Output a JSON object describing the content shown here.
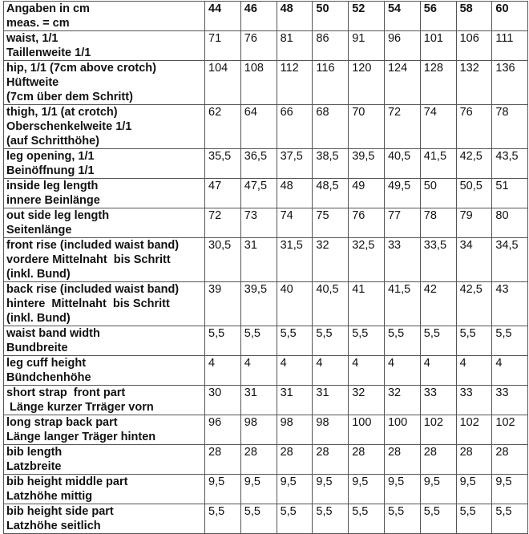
{
  "table": {
    "header_label": [
      "Angaben in cm",
      "meas. = cm"
    ],
    "sizes": [
      "44",
      "46",
      "48",
      "50",
      "52",
      "54",
      "56",
      "58",
      "60"
    ],
    "rows": [
      {
        "label": [
          "waist, 1/1",
          "Taillenweite 1/1"
        ],
        "values": [
          "71",
          "76",
          "81",
          "86",
          "91",
          "96",
          "101",
          "106",
          "111"
        ]
      },
      {
        "label": [
          "hip, 1/1 (7cm above crotch)",
          "Hüftweite",
          "(7cm über dem Schritt)"
        ],
        "values": [
          "104",
          "108",
          "112",
          "116",
          "120",
          "124",
          "128",
          "132",
          "136"
        ]
      },
      {
        "label": [
          "thigh, 1/1 (at crotch)",
          "Oberschenkelweite 1/1",
          "(auf Schritthöhe)"
        ],
        "values": [
          "62",
          "64",
          "66",
          "68",
          "70",
          "72",
          "74",
          "76",
          "78"
        ]
      },
      {
        "label": [
          "leg opening, 1/1",
          "Beinöffnung 1/1"
        ],
        "values": [
          "35,5",
          "36,5",
          "37,5",
          "38,5",
          "39,5",
          "40,5",
          "41,5",
          "42,5",
          "43,5"
        ]
      },
      {
        "label": [
          "inside leg length",
          "innere Beinlänge"
        ],
        "values": [
          "47",
          "47,5",
          "48",
          "48,5",
          "49",
          "49,5",
          "50",
          "50,5",
          "51"
        ]
      },
      {
        "label": [
          "out side leg length",
          "Seitenlänge"
        ],
        "values": [
          "72",
          "73",
          "74",
          "75",
          "76",
          "77",
          "78",
          "79",
          "80"
        ]
      },
      {
        "label": [
          "front rise (included waist band)",
          "vordere Mittelnaht  bis Schritt",
          "(inkl. Bund)"
        ],
        "values": [
          "30,5",
          "31",
          "31,5",
          "32",
          "32,5",
          "33",
          "33,5",
          "34",
          "34,5"
        ]
      },
      {
        "label": [
          "back rise (included waist band)",
          "hintere  Mittelnaht  bis Schritt",
          "(inkl. Bund)"
        ],
        "values": [
          "39",
          "39,5",
          "40",
          "40,5",
          "41",
          "41,5",
          "42",
          "42,5",
          "43"
        ]
      },
      {
        "label": [
          "waist band width",
          "Bundbreite"
        ],
        "values": [
          "5,5",
          "5,5",
          "5,5",
          "5,5",
          "5,5",
          "5,5",
          "5,5",
          "5,5",
          "5,5"
        ]
      },
      {
        "label": [
          "leg cuff height",
          "Bündchenhöhe"
        ],
        "values": [
          "4",
          "4",
          "4",
          "4",
          "4",
          "4",
          "4",
          "4",
          "4"
        ]
      },
      {
        "label": [
          "short strap  front part",
          " Länge kurzer Trräger vorn"
        ],
        "values": [
          "30",
          "31",
          "31",
          "31",
          "32",
          "32",
          "33",
          "33",
          "33"
        ]
      },
      {
        "label": [
          "long strap back part",
          "Länge langer Träger hinten"
        ],
        "values": [
          "96",
          "98",
          "98",
          "98",
          "100",
          "100",
          "102",
          "102",
          "102"
        ]
      },
      {
        "label": [
          "bib length",
          "Latzbreite"
        ],
        "values": [
          "28",
          "28",
          "28",
          "28",
          "28",
          "28",
          "28",
          "28",
          "28"
        ]
      },
      {
        "label": [
          "bib height middle part",
          "Latzhöhe mittig"
        ],
        "values": [
          "9,5",
          "9,5",
          "9,5",
          "9,5",
          "9,5",
          "9,5",
          "9,5",
          "9,5",
          "9,5"
        ]
      },
      {
        "label": [
          "bib height side part",
          "Latzhöhe seitlich"
        ],
        "values": [
          "5,5",
          "5,5",
          "5,5",
          "5,5",
          "5,5",
          "5,5",
          "5,5",
          "5,5",
          "5,5"
        ]
      }
    ]
  }
}
